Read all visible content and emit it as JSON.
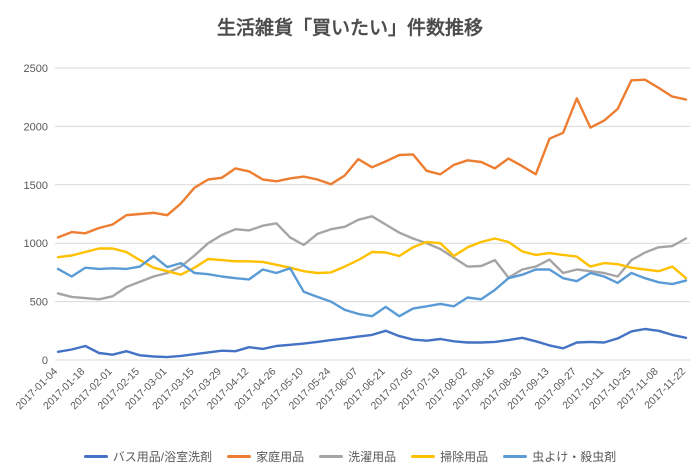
{
  "title": "生活雑貨「買いたい」件数推移",
  "chart_data": {
    "type": "line",
    "title": "生活雑貨「買いたい」件数推移",
    "xlabel": "",
    "ylabel": "",
    "ylim": [
      0,
      2500
    ],
    "y_ticks": [
      0,
      500,
      1000,
      1500,
      2000,
      2500
    ],
    "grid": true,
    "legend_position": "bottom",
    "x_tick_every": 2,
    "x": [
      "2017-01-04",
      "2017-01-11",
      "2017-01-18",
      "2017-01-25",
      "2017-02-01",
      "2017-02-08",
      "2017-02-15",
      "2017-02-22",
      "2017-03-01",
      "2017-03-08",
      "2017-03-15",
      "2017-03-22",
      "2017-03-29",
      "2017-04-05",
      "2017-04-12",
      "2017-04-19",
      "2017-04-26",
      "2017-05-03",
      "2017-05-10",
      "2017-05-17",
      "2017-05-24",
      "2017-05-31",
      "2017-06-07",
      "2017-06-14",
      "2017-06-21",
      "2017-06-28",
      "2017-07-05",
      "2017-07-12",
      "2017-07-19",
      "2017-07-26",
      "2017-08-02",
      "2017-08-09",
      "2017-08-16",
      "2017-08-23",
      "2017-08-30",
      "2017-09-06",
      "2017-09-13",
      "2017-09-20",
      "2017-09-27",
      "2017-10-04",
      "2017-10-11",
      "2017-10-18",
      "2017-10-25",
      "2017-11-01",
      "2017-11-08",
      "2017-11-15",
      "2017-11-22"
    ],
    "series": [
      {
        "name": "バス用品/浴室洗剤",
        "color": "#4472C4",
        "values": [
          70,
          90,
          120,
          60,
          45,
          75,
          40,
          30,
          25,
          35,
          50,
          65,
          80,
          75,
          110,
          95,
          120,
          130,
          140,
          155,
          170,
          185,
          200,
          215,
          250,
          205,
          175,
          165,
          180,
          160,
          150,
          150,
          155,
          170,
          190,
          160,
          125,
          100,
          150,
          155,
          150,
          185,
          245,
          265,
          250,
          215,
          190
        ]
      },
      {
        "name": "家庭用品",
        "color": "#ED7D31",
        "values": [
          1050,
          1095,
          1085,
          1130,
          1160,
          1240,
          1250,
          1260,
          1240,
          1340,
          1475,
          1545,
          1560,
          1640,
          1615,
          1545,
          1530,
          1555,
          1570,
          1545,
          1505,
          1580,
          1720,
          1650,
          1700,
          1755,
          1760,
          1620,
          1590,
          1670,
          1710,
          1695,
          1640,
          1725,
          1660,
          1590,
          1895,
          1945,
          2240,
          1990,
          2050,
          2150,
          2395,
          2400,
          2330,
          2255,
          2230
        ]
      },
      {
        "name": "洗濯用品",
        "color": "#A5A5A5",
        "values": [
          570,
          540,
          530,
          520,
          545,
          625,
          670,
          715,
          745,
          800,
          895,
          1000,
          1070,
          1120,
          1110,
          1150,
          1170,
          1050,
          985,
          1080,
          1120,
          1140,
          1200,
          1230,
          1160,
          1090,
          1040,
          1000,
          950,
          875,
          800,
          805,
          855,
          705,
          775,
          800,
          860,
          745,
          775,
          760,
          745,
          715,
          855,
          920,
          965,
          975,
          1040
        ]
      },
      {
        "name": "掃除用品",
        "color": "#FFC000",
        "values": [
          880,
          895,
          925,
          955,
          955,
          925,
          855,
          790,
          760,
          730,
          790,
          865,
          855,
          845,
          845,
          840,
          815,
          790,
          760,
          745,
          750,
          800,
          855,
          925,
          920,
          890,
          965,
          1010,
          1000,
          890,
          965,
          1010,
          1040,
          1010,
          930,
          900,
          915,
          900,
          885,
          800,
          830,
          820,
          790,
          775,
          760,
          800,
          700
        ]
      },
      {
        "name": "虫よけ・殺虫剤",
        "color": "#5B9BD5",
        "values": [
          780,
          715,
          790,
          780,
          785,
          780,
          800,
          890,
          795,
          830,
          745,
          735,
          715,
          700,
          690,
          775,
          745,
          785,
          585,
          540,
          500,
          430,
          395,
          375,
          455,
          375,
          440,
          460,
          480,
          460,
          535,
          520,
          600,
          700,
          730,
          775,
          775,
          700,
          675,
          745,
          715,
          660,
          745,
          700,
          665,
          650,
          680
        ]
      }
    ],
    "colors": {
      "background": "#ffffff",
      "gridline": "#d9d9d9",
      "axis_text": "#595959",
      "title_text": "#4d4d4d"
    }
  }
}
